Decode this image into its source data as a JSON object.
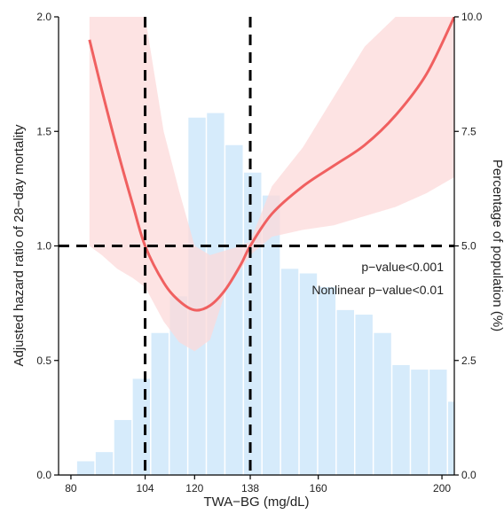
{
  "chart_data": {
    "type": "line",
    "title": "",
    "xlabel": "TWA−BG (mg/dL)",
    "ylabel_left": "Adjusted hazard ratio of 28−day mortality",
    "ylabel_right": "Percentage of population (%)",
    "xlim": [
      76,
      204
    ],
    "ylim_left": [
      0,
      2.0
    ],
    "ylim_right": [
      0,
      10.0
    ],
    "x_ticks": [
      80,
      104,
      120,
      138,
      160,
      200
    ],
    "y_ticks_left": [
      0.0,
      0.5,
      1.0,
      1.5,
      2.0
    ],
    "y_ticks_right": [
      0.0,
      2.5,
      5.0,
      7.5,
      10.0
    ],
    "reference_lines": {
      "horizontal": [
        1.0
      ],
      "vertical": [
        104,
        138
      ]
    },
    "annotations": [
      "p−value<0.001",
      "Nonlinear p−value<0.01"
    ],
    "colors": {
      "curve": "#f06060",
      "ci_band": "#fcd9d9",
      "histogram": "#d6ebfb",
      "reference": "#000000"
    },
    "histogram": {
      "bin_width": 6,
      "bins": [
        {
          "start": 82,
          "pct": 0.3
        },
        {
          "start": 88,
          "pct": 0.5
        },
        {
          "start": 94,
          "pct": 1.2
        },
        {
          "start": 100,
          "pct": 2.1
        },
        {
          "start": 106,
          "pct": 3.1
        },
        {
          "start": 112,
          "pct": 3.9
        },
        {
          "start": 118,
          "pct": 7.8
        },
        {
          "start": 124,
          "pct": 7.9
        },
        {
          "start": 130,
          "pct": 7.2
        },
        {
          "start": 136,
          "pct": 6.6
        },
        {
          "start": 142,
          "pct": 6.1
        },
        {
          "start": 148,
          "pct": 4.5
        },
        {
          "start": 154,
          "pct": 4.4
        },
        {
          "start": 160,
          "pct": 4.1
        },
        {
          "start": 166,
          "pct": 3.6
        },
        {
          "start": 172,
          "pct": 3.5
        },
        {
          "start": 178,
          "pct": 3.1
        },
        {
          "start": 184,
          "pct": 2.4
        },
        {
          "start": 190,
          "pct": 2.3
        },
        {
          "start": 196,
          "pct": 2.3
        },
        {
          "start": 202,
          "pct": 1.6
        }
      ]
    },
    "series": [
      {
        "x": [
          86,
          90,
          95,
          100,
          104,
          110,
          115,
          120,
          125,
          130,
          135,
          138,
          145,
          155,
          165,
          175,
          185,
          195,
          204
        ],
        "y": [
          1.9,
          1.68,
          1.42,
          1.18,
          1.0,
          0.84,
          0.76,
          0.72,
          0.74,
          0.81,
          0.92,
          1.0,
          1.14,
          1.26,
          1.35,
          1.44,
          1.57,
          1.75,
          2.0
        ],
        "lower": [
          1.0,
          0.96,
          0.9,
          0.86,
          0.82,
          0.67,
          0.58,
          0.54,
          0.59,
          0.8,
          0.9,
          0.96,
          1.04,
          1.07,
          1.09,
          1.13,
          1.17,
          1.23,
          1.3
        ],
        "upper": [
          2.0,
          2.0,
          2.0,
          2.0,
          2.0,
          1.5,
          1.24,
          1.0,
          0.96,
          0.98,
          1.0,
          1.02,
          1.26,
          1.43,
          1.65,
          1.87,
          2.0,
          2.0,
          2.0
        ]
      }
    ]
  }
}
